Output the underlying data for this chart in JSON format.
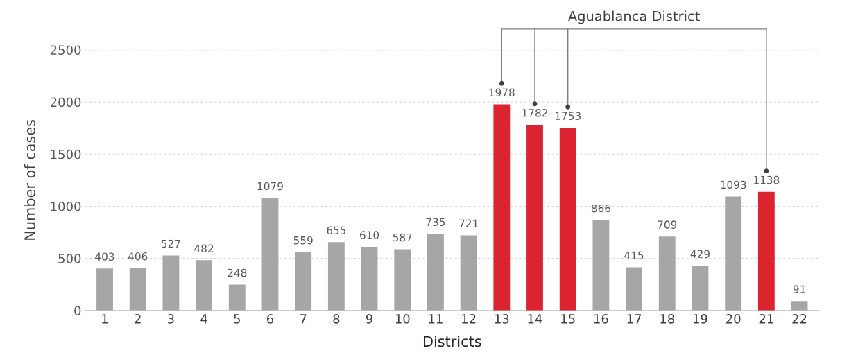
{
  "chart_data": {
    "type": "bar",
    "xlabel": "Districts",
    "ylabel": "Number of cases",
    "categories": [
      "1",
      "2",
      "3",
      "4",
      "5",
      "6",
      "7",
      "8",
      "9",
      "10",
      "11",
      "12",
      "13",
      "14",
      "15",
      "16",
      "17",
      "18",
      "19",
      "20",
      "21",
      "22"
    ],
    "values": [
      403,
      406,
      527,
      482,
      248,
      1079,
      559,
      655,
      610,
      587,
      735,
      721,
      1978,
      1782,
      1753,
      866,
      415,
      709,
      429,
      1093,
      1138,
      91
    ],
    "colors": [
      "#a6a6a6",
      "#a6a6a6",
      "#a6a6a6",
      "#a6a6a6",
      "#a6a6a6",
      "#a6a6a6",
      "#a6a6a6",
      "#a6a6a6",
      "#a6a6a6",
      "#a6a6a6",
      "#a6a6a6",
      "#a6a6a6",
      "#dc2430",
      "#dc2430",
      "#dc2430",
      "#a6a6a6",
      "#a6a6a6",
      "#a6a6a6",
      "#a6a6a6",
      "#a6a6a6",
      "#dc2430",
      "#a6a6a6"
    ],
    "ylim": [
      0,
      2500
    ],
    "yticks": [
      0,
      500,
      1000,
      1500,
      2000,
      2500
    ],
    "grid": "y",
    "data_labels": true,
    "annotations": [
      "Aguablanca District"
    ]
  }
}
